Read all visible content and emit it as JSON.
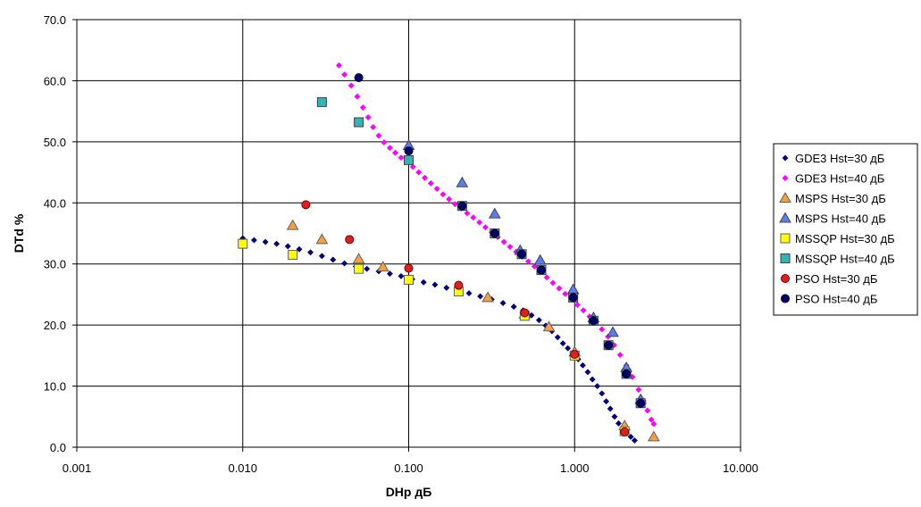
{
  "chart_data": {
    "type": "scatter",
    "xscale": "log",
    "xlim": [
      0.001,
      10
    ],
    "ylim": [
      0,
      70
    ],
    "xlabel": "DHp дБ",
    "ylabel": "DTd %",
    "x_ticks": [
      0.001,
      0.01,
      0.1,
      1,
      10
    ],
    "x_tick_labels": [
      "0.001",
      "0.010",
      "0.100",
      "1.000",
      "10.000"
    ],
    "y_ticks": [
      0,
      10,
      20,
      30,
      40,
      50,
      60,
      70
    ],
    "y_tick_labels": [
      "0.0",
      "10.0",
      "20.0",
      "30.0",
      "40.0",
      "50.0",
      "60.0",
      "70.0"
    ],
    "grid": true,
    "legend_position": "right",
    "series": [
      {
        "name": "GDE3 Hst=30 дБ",
        "marker": "diamond-small",
        "color": "#000080",
        "points": [
          [
            0.01,
            34.2
          ],
          [
            0.0117,
            33.9
          ],
          [
            0.0137,
            33.6
          ],
          [
            0.016,
            33.3
          ],
          [
            0.0187,
            32.9
          ],
          [
            0.0219,
            32.4
          ],
          [
            0.0256,
            31.9
          ],
          [
            0.03,
            31.3
          ],
          [
            0.035,
            30.7
          ],
          [
            0.041,
            30.1
          ],
          [
            0.048,
            29.6
          ],
          [
            0.056,
            29.2
          ],
          [
            0.066,
            28.8
          ],
          [
            0.077,
            28.4
          ],
          [
            0.09,
            28.0
          ],
          [
            0.105,
            27.5
          ],
          [
            0.123,
            27.0
          ],
          [
            0.144,
            26.6
          ],
          [
            0.169,
            26.1
          ],
          [
            0.197,
            25.7
          ],
          [
            0.231,
            25.2
          ],
          [
            0.27,
            24.7
          ],
          [
            0.316,
            24.2
          ],
          [
            0.37,
            23.6
          ],
          [
            0.43,
            23.0
          ],
          [
            0.49,
            22.4
          ],
          [
            0.55,
            21.6
          ],
          [
            0.61,
            20.8
          ],
          [
            0.67,
            19.9
          ],
          [
            0.73,
            19.0
          ],
          [
            0.79,
            18.0
          ],
          [
            0.85,
            17.0
          ],
          [
            0.91,
            16.2
          ],
          [
            0.98,
            15.3
          ],
          [
            1.05,
            14.4
          ],
          [
            1.12,
            13.4
          ],
          [
            1.2,
            12.3
          ],
          [
            1.28,
            11.1
          ],
          [
            1.37,
            10.0
          ],
          [
            1.46,
            8.8
          ],
          [
            1.55,
            7.5
          ],
          [
            1.64,
            6.3
          ],
          [
            1.74,
            5.0
          ],
          [
            1.84,
            3.9
          ],
          [
            1.95,
            2.9
          ],
          [
            2.05,
            2.4
          ],
          [
            2.18,
            1.7
          ],
          [
            2.3,
            1.1
          ]
        ]
      },
      {
        "name": "GDE3 Hst=40 дБ",
        "marker": "diamond-small",
        "color": "#ff00ff",
        "points": [
          [
            0.038,
            62.5
          ],
          [
            0.041,
            61.0
          ],
          [
            0.045,
            59.2
          ],
          [
            0.049,
            57.4
          ],
          [
            0.053,
            55.6
          ],
          [
            0.057,
            54.0
          ],
          [
            0.061,
            52.4
          ],
          [
            0.066,
            51.0
          ],
          [
            0.071,
            49.9
          ],
          [
            0.077,
            49.0
          ],
          [
            0.083,
            48.2
          ],
          [
            0.09,
            47.4
          ],
          [
            0.098,
            46.7
          ],
          [
            0.106,
            45.9
          ],
          [
            0.115,
            45.0
          ],
          [
            0.125,
            44.1
          ],
          [
            0.136,
            43.2
          ],
          [
            0.148,
            42.3
          ],
          [
            0.161,
            41.4
          ],
          [
            0.175,
            40.6
          ],
          [
            0.19,
            39.8
          ],
          [
            0.207,
            39.1
          ],
          [
            0.225,
            38.3
          ],
          [
            0.245,
            37.6
          ],
          [
            0.267,
            36.8
          ],
          [
            0.29,
            36.0
          ],
          [
            0.316,
            35.2
          ],
          [
            0.344,
            34.4
          ],
          [
            0.375,
            33.6
          ],
          [
            0.408,
            32.8
          ],
          [
            0.444,
            32.0
          ],
          [
            0.483,
            31.2
          ],
          [
            0.526,
            30.4
          ],
          [
            0.573,
            29.6
          ],
          [
            0.624,
            28.7
          ],
          [
            0.68,
            27.8
          ],
          [
            0.74,
            26.9
          ],
          [
            0.806,
            26.0
          ],
          [
            0.877,
            25.1
          ],
          [
            0.955,
            24.2
          ],
          [
            1.04,
            23.3
          ],
          [
            1.13,
            22.4
          ],
          [
            1.23,
            21.4
          ],
          [
            1.34,
            20.4
          ],
          [
            1.46,
            19.3
          ],
          [
            1.59,
            18.1
          ],
          [
            1.73,
            16.7
          ],
          [
            1.88,
            15.1
          ],
          [
            2.05,
            13.4
          ],
          [
            2.23,
            11.5
          ],
          [
            2.43,
            9.4
          ],
          [
            2.6,
            7.6
          ],
          [
            2.75,
            6.0
          ],
          [
            2.9,
            4.5
          ],
          [
            3.0,
            3.8
          ]
        ]
      },
      {
        "name": "MSPS Hst=30 дБ",
        "marker": "triangle",
        "color": "#f4a040",
        "stroke": "#606060",
        "points": [
          [
            0.02,
            36.3
          ],
          [
            0.03,
            34.0
          ],
          [
            0.05,
            30.8
          ],
          [
            0.07,
            29.5
          ],
          [
            0.3,
            24.5
          ],
          [
            0.5,
            21.8
          ],
          [
            0.7,
            19.7
          ],
          [
            1.0,
            15.6
          ],
          [
            2.0,
            3.5
          ],
          [
            3.0,
            1.7
          ]
        ]
      },
      {
        "name": "MSPS Hst=40 дБ",
        "marker": "triangle",
        "color": "#5a7fe6",
        "stroke": "#404060",
        "points": [
          [
            0.1,
            49.4
          ],
          [
            0.21,
            43.3
          ],
          [
            0.33,
            38.2
          ],
          [
            0.47,
            32.2
          ],
          [
            0.62,
            30.6
          ],
          [
            0.98,
            25.8
          ],
          [
            1.3,
            21.2
          ],
          [
            1.7,
            18.8
          ],
          [
            2.05,
            13.0
          ],
          [
            2.5,
            7.8
          ]
        ]
      },
      {
        "name": "MSSQP Hst=30 дБ",
        "marker": "square",
        "color": "#ffff00",
        "stroke": "#606060",
        "points": [
          [
            0.01,
            33.3
          ],
          [
            0.02,
            31.5
          ],
          [
            0.05,
            29.2
          ],
          [
            0.1,
            27.4
          ],
          [
            0.2,
            25.5
          ],
          [
            0.5,
            21.5
          ],
          [
            1.0,
            15.0
          ],
          [
            2.0,
            2.6
          ]
        ]
      },
      {
        "name": "MSSQP Hst=40 дБ",
        "marker": "square",
        "color": "#33b3b3",
        "stroke": "#404040",
        "points": [
          [
            0.03,
            56.5
          ],
          [
            0.05,
            53.2
          ],
          [
            0.1,
            47.0
          ],
          [
            0.21,
            39.5
          ],
          [
            0.33,
            35.0
          ],
          [
            0.48,
            31.6
          ],
          [
            0.63,
            29.0
          ],
          [
            0.98,
            24.5
          ],
          [
            1.3,
            20.7
          ],
          [
            1.6,
            16.7
          ],
          [
            2.05,
            12.0
          ],
          [
            2.5,
            7.2
          ]
        ]
      },
      {
        "name": "PSO Hst=30 дБ",
        "marker": "circle",
        "color": "#e02020",
        "stroke": "#700000",
        "points": [
          [
            0.024,
            39.7
          ],
          [
            0.044,
            34.0
          ],
          [
            0.1,
            29.3
          ],
          [
            0.2,
            26.5
          ],
          [
            0.5,
            22.0
          ],
          [
            1.0,
            15.2
          ],
          [
            2.0,
            2.5
          ]
        ]
      },
      {
        "name": "PSO Hst=40 дБ",
        "marker": "circle",
        "color": "#000066",
        "stroke": "#000033",
        "points": [
          [
            0.05,
            60.5
          ],
          [
            0.1,
            48.5
          ],
          [
            0.21,
            39.5
          ],
          [
            0.33,
            35.0
          ],
          [
            0.48,
            31.6
          ],
          [
            0.63,
            29.0
          ],
          [
            0.98,
            24.5
          ],
          [
            1.3,
            20.7
          ],
          [
            1.6,
            16.7
          ],
          [
            2.05,
            12.0
          ],
          [
            2.5,
            7.2
          ]
        ]
      }
    ]
  }
}
